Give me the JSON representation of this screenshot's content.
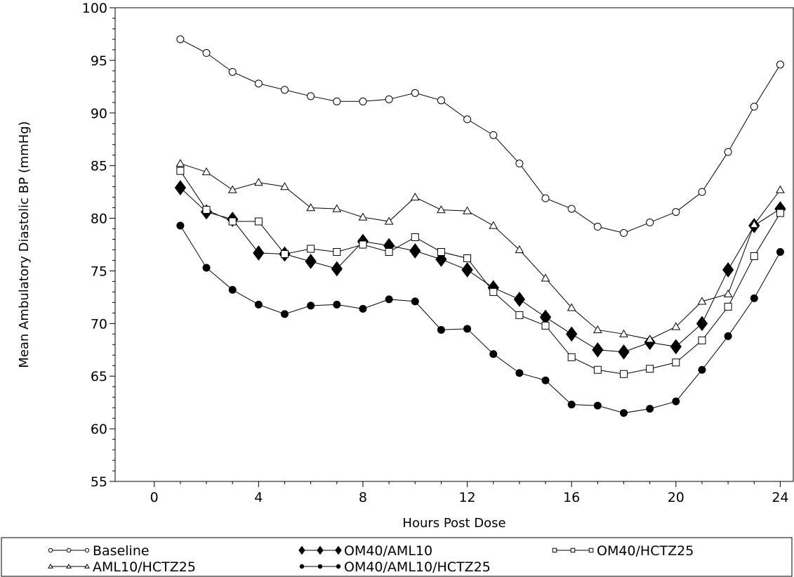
{
  "chart_data": {
    "type": "line",
    "title": "",
    "xlabel": "Hours Post Dose",
    "ylabel": "Mean Ambulatory Diastolic BP (mmHg)",
    "xlim": [
      -1.5,
      24.5
    ],
    "ylim": [
      55,
      100
    ],
    "x_ticks": [
      0,
      4,
      8,
      12,
      16,
      20,
      24
    ],
    "x_ticks_minor_step": 1,
    "y_ticks": [
      55,
      60,
      65,
      70,
      75,
      80,
      85,
      90,
      95,
      100
    ],
    "y_ticks_minor_step": 1,
    "grid": false,
    "legend_position": "bottom",
    "x": [
      1,
      2,
      3,
      4,
      5,
      6,
      7,
      8,
      9,
      10,
      11,
      12,
      13,
      14,
      15,
      16,
      17,
      18,
      19,
      20,
      21,
      22,
      23,
      24
    ],
    "series": [
      {
        "name": "Baseline",
        "marker": "open-circle",
        "values": [
          97.0,
          95.7,
          93.9,
          92.8,
          92.2,
          91.6,
          91.1,
          91.1,
          91.3,
          91.9,
          91.2,
          89.4,
          87.9,
          85.2,
          81.9,
          80.9,
          79.2,
          78.6,
          79.6,
          80.6,
          82.5,
          86.3,
          90.6,
          94.6
        ]
      },
      {
        "name": "OM40/AML10",
        "marker": "filled-diamond",
        "values": [
          82.9,
          80.6,
          79.9,
          76.7,
          76.6,
          75.9,
          75.2,
          77.8,
          77.4,
          76.9,
          76.1,
          75.1,
          73.4,
          72.3,
          70.6,
          69.0,
          67.5,
          67.3,
          68.2,
          67.8,
          70.0,
          75.1,
          79.3,
          80.9
        ]
      },
      {
        "name": "OM40/HCTZ25",
        "marker": "open-square",
        "values": [
          84.5,
          80.8,
          79.7,
          79.7,
          76.6,
          77.1,
          76.8,
          77.5,
          76.8,
          78.2,
          76.8,
          76.2,
          73.0,
          70.8,
          69.8,
          66.8,
          65.6,
          65.2,
          65.7,
          66.3,
          68.4,
          71.6,
          76.4,
          80.5
        ]
      },
      {
        "name": "AML10/HCTZ25",
        "marker": "open-triangle",
        "values": [
          85.2,
          84.4,
          82.7,
          83.4,
          83.0,
          81.0,
          80.9,
          80.1,
          79.7,
          82.0,
          80.8,
          80.7,
          79.3,
          77.0,
          74.3,
          71.5,
          69.4,
          69.0,
          68.5,
          69.7,
          72.1,
          72.8,
          79.4,
          82.7
        ]
      },
      {
        "name": "OM40/AML10/HCTZ25",
        "marker": "filled-circle",
        "values": [
          79.3,
          75.3,
          73.2,
          71.8,
          70.9,
          71.7,
          71.8,
          71.4,
          72.3,
          72.1,
          69.4,
          69.5,
          67.1,
          65.3,
          64.6,
          62.3,
          62.2,
          61.5,
          61.9,
          62.6,
          65.6,
          68.8,
          72.4,
          76.8
        ]
      }
    ]
  }
}
